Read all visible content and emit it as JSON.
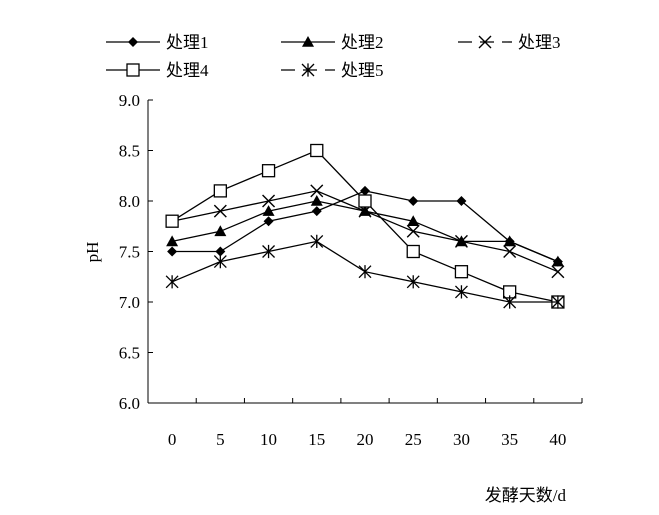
{
  "chart_data": {
    "type": "line",
    "title": "",
    "xlabel": "发酵天数/d",
    "ylabel": "pH",
    "x": [
      0,
      5,
      10,
      15,
      20,
      25,
      30,
      35,
      40
    ],
    "ylim": [
      6.0,
      9.0
    ],
    "yticks": [
      "6.0",
      "6.5",
      "7.0",
      "7.5",
      "8.0",
      "8.5",
      "9.0"
    ],
    "xticks": [
      "0",
      "5",
      "10",
      "15",
      "20",
      "25",
      "30",
      "35",
      "40"
    ],
    "grid": false,
    "legend_position": "top",
    "series": [
      {
        "name": "处理1",
        "marker": "diamond",
        "line": "solid",
        "values": [
          7.5,
          7.5,
          7.8,
          7.9,
          8.1,
          8.0,
          8.0,
          7.6,
          7.4
        ]
      },
      {
        "name": "处理2",
        "marker": "triangle",
        "line": "solid",
        "values": [
          7.6,
          7.7,
          7.9,
          8.0,
          7.9,
          7.8,
          7.6,
          7.6,
          7.4
        ]
      },
      {
        "name": "处理3",
        "marker": "x",
        "line": "dashed",
        "values": [
          7.8,
          7.9,
          8.0,
          8.1,
          7.9,
          7.7,
          7.6,
          7.5,
          7.3
        ]
      },
      {
        "name": "处理4",
        "marker": "square",
        "line": "solid",
        "values": [
          7.8,
          8.1,
          8.3,
          8.5,
          8.0,
          7.5,
          7.3,
          7.1,
          7.0
        ]
      },
      {
        "name": "处理5",
        "marker": "asterisk",
        "line": "dashed",
        "values": [
          7.2,
          7.4,
          7.5,
          7.6,
          7.3,
          7.2,
          7.1,
          7.0,
          7.0
        ]
      }
    ]
  }
}
